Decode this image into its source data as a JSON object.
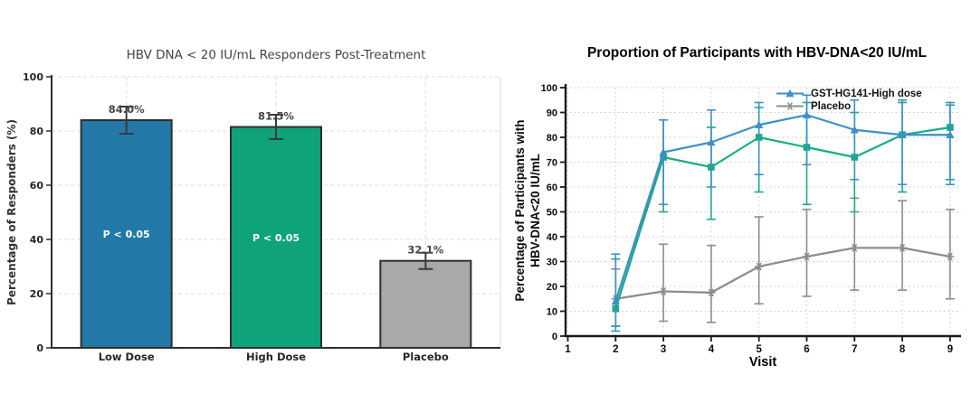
{
  "chart_data": [
    {
      "type": "bar",
      "title": "HBV DNA < 20 IU/mL Responders Post-Treatment",
      "ylabel": "Percentage of Responders (%)",
      "categories": [
        "Low Dose",
        "High Dose",
        "Placebo"
      ],
      "values": [
        84.0,
        81.5,
        32.1
      ],
      "value_labels": [
        "84.0%",
        "81.5%",
        "32.1%"
      ],
      "error_bars": [
        5.0,
        4.5,
        3.0
      ],
      "annotations": [
        "P < 0.05",
        "P < 0.05",
        ""
      ],
      "bar_colors": [
        "#2279a7",
        "#0fa37c",
        "#a9a9a9"
      ],
      "bar_edge_color": "#2e2e2e",
      "ylim": [
        0,
        100
      ],
      "yticks": [
        0,
        20,
        40,
        60,
        80,
        100
      ],
      "grid": "light dashed gridlines, horizontal at y ticks and vertical at bar centers",
      "legend_position": "none"
    },
    {
      "type": "line",
      "title": "Proportion of Participants with HBV-DNA<20 IU/mL",
      "ylabel_lines": [
        "Percentage of Participants with",
        "HBV-DNA<20 IU/mL"
      ],
      "xlabel": "Visit",
      "xlim": [
        1,
        9
      ],
      "xticks": [
        1,
        2,
        3,
        4,
        5,
        6,
        7,
        8,
        9
      ],
      "ylim": [
        0,
        100
      ],
      "yticks": [
        0,
        10,
        20,
        30,
        40,
        50,
        60,
        70,
        80,
        90,
        100
      ],
      "grid": "light dotted gridlines at every x and y tick",
      "legend_position": "top-right inside plot",
      "legend": [
        {
          "label": "GST-HG141-High dose",
          "color": "#3f8fc5",
          "marker": "triangle"
        },
        {
          "label": "Placebo",
          "color": "#8c8c8c",
          "marker": "star"
        }
      ],
      "series": [
        {
          "name": "Placebo",
          "color": "#8c8c8c",
          "marker": "star",
          "x": [
            2,
            3,
            4,
            5,
            6,
            7,
            8,
            9
          ],
          "y": [
            15,
            18,
            17.5,
            28,
            32,
            35.5,
            35.5,
            32
          ],
          "err_up": [
            12,
            19,
            19,
            20,
            19,
            20,
            19,
            19
          ],
          "err_down": [
            11,
            12,
            12,
            15,
            16,
            17,
            17,
            17
          ]
        },
        {
          "name": "",
          "color": "#18ac86",
          "marker": "square",
          "x": [
            2,
            3,
            4,
            5,
            6,
            7,
            8,
            9
          ],
          "y": [
            11,
            72,
            68,
            80,
            76,
            72,
            81,
            84
          ],
          "err_up": [
            20,
            15,
            16,
            12,
            18,
            18,
            14,
            9
          ],
          "err_down": [
            9,
            22,
            21,
            22,
            23,
            22,
            23,
            21
          ]
        },
        {
          "name": "GST-HG141-High dose",
          "color": "#3f8fc5",
          "marker": "triangle",
          "x": [
            2,
            3,
            4,
            5,
            6,
            7,
            8,
            9
          ],
          "y": [
            14,
            74,
            78,
            85,
            89,
            83,
            81,
            81
          ],
          "err_up": [
            19,
            13,
            13,
            9,
            8,
            12,
            13,
            13
          ],
          "err_down": [
            10,
            21,
            18,
            20,
            20,
            20,
            20,
            20
          ]
        }
      ]
    }
  ]
}
